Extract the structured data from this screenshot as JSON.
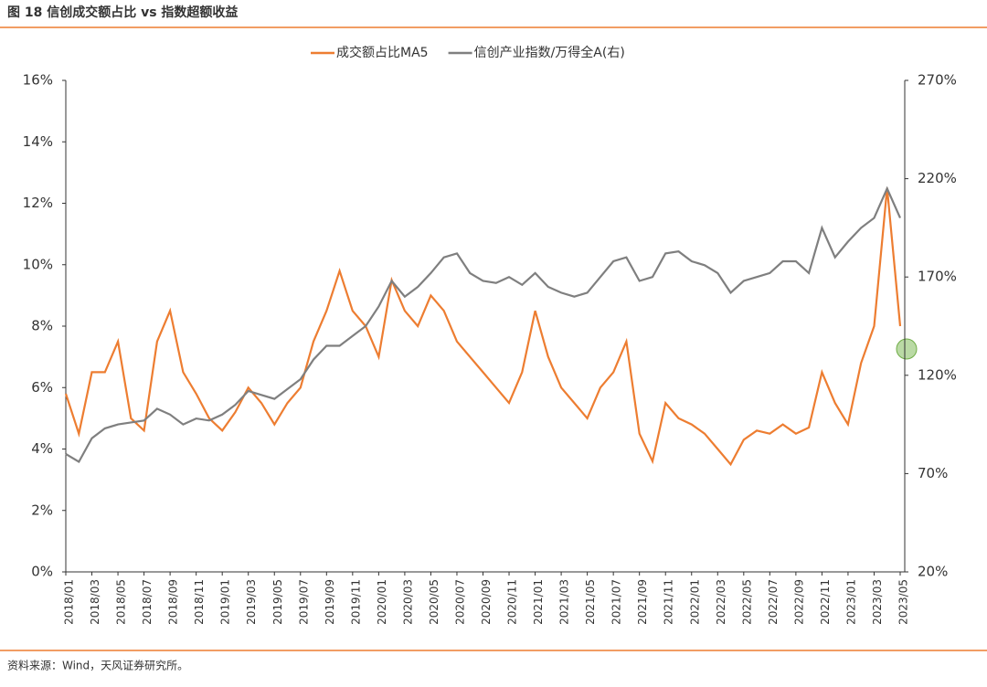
{
  "title": "图 18 信创成交额占比 vs 指数超额收益",
  "source": "资料来源：Wind，天风证券研究所。",
  "chart_data": {
    "type": "line",
    "categories": [
      "2018/01",
      null,
      "2018/03",
      null,
      "2018/05",
      null,
      "2018/07",
      null,
      "2018/09",
      null,
      "2018/11",
      null,
      "2019/01",
      null,
      "2019/03",
      null,
      "2019/05",
      null,
      "2019/07",
      null,
      "2019/09",
      null,
      "2019/11",
      null,
      "2020/01",
      null,
      "2020/03",
      null,
      "2020/05",
      null,
      "2020/07",
      null,
      "2020/09",
      null,
      "2020/11",
      null,
      "2021/01",
      null,
      "2021/03",
      null,
      "2021/05",
      null,
      "2021/07",
      null,
      "2021/09",
      null,
      "2021/11",
      null,
      "2022/01",
      null,
      "2022/03",
      null,
      "2022/05",
      null,
      "2022/07",
      null,
      "2022/09",
      null,
      "2022/11",
      null,
      "2023/01",
      null,
      "2023/03",
      null,
      "2023/05"
    ],
    "series": [
      {
        "name": "成交额占比MA5",
        "color": "#ed7d31",
        "axis": "y",
        "values": [
          5.8,
          4.5,
          6.5,
          6.5,
          7.5,
          5.0,
          4.6,
          7.5,
          8.5,
          6.5,
          5.8,
          5.0,
          4.6,
          5.2,
          6.0,
          5.5,
          4.8,
          5.5,
          6.0,
          7.5,
          8.5,
          9.8,
          8.5,
          8.0,
          7.0,
          9.5,
          8.5,
          8.0,
          9.0,
          8.5,
          7.5,
          7.0,
          6.5,
          6.0,
          5.5,
          6.5,
          8.5,
          7.0,
          6.0,
          5.5,
          5.0,
          6.0,
          6.5,
          7.5,
          4.5,
          3.6,
          5.5,
          5.0,
          4.8,
          4.5,
          4.0,
          3.5,
          4.3,
          4.6,
          4.5,
          4.8,
          4.5,
          4.7,
          6.5,
          5.5,
          4.8,
          6.8,
          8.0,
          12.5,
          8.0
        ]
      },
      {
        "name": "信创产业指数/万得全A(右)",
        "color": "#7f7f7f",
        "axis": "y2",
        "values": [
          80,
          76,
          88,
          93,
          95,
          96,
          97,
          103,
          100,
          95,
          98,
          97,
          100,
          105,
          112,
          110,
          108,
          113,
          118,
          128,
          135,
          135,
          140,
          145,
          155,
          168,
          160,
          165,
          172,
          180,
          182,
          172,
          168,
          167,
          170,
          166,
          172,
          165,
          162,
          160,
          162,
          170,
          178,
          180,
          168,
          170,
          182,
          183,
          178,
          176,
          172,
          162,
          168,
          170,
          172,
          178,
          178,
          172,
          195,
          180,
          188,
          195,
          200,
          215,
          200
        ]
      }
    ],
    "ylim": [
      0,
      16
    ],
    "yticks": [
      {
        "value": 0,
        "label": "0%"
      },
      {
        "value": 2,
        "label": "2%"
      },
      {
        "value": 4,
        "label": "4%"
      },
      {
        "value": 6,
        "label": "6%"
      },
      {
        "value": 8,
        "label": "8%"
      },
      {
        "value": 10,
        "label": "10%"
      },
      {
        "value": 12,
        "label": "12%"
      },
      {
        "value": 14,
        "label": "14%"
      },
      {
        "value": 16,
        "label": "16%"
      }
    ],
    "y2lim": [
      20,
      270
    ],
    "y2ticks": [
      {
        "value": 20,
        "label": "20%"
      },
      {
        "value": 70,
        "label": "70%"
      },
      {
        "value": 120,
        "label": "120%"
      },
      {
        "value": 170,
        "label": "170%"
      },
      {
        "value": 220,
        "label": "220%"
      },
      {
        "value": 270,
        "label": "270%"
      }
    ],
    "legend": "top"
  }
}
